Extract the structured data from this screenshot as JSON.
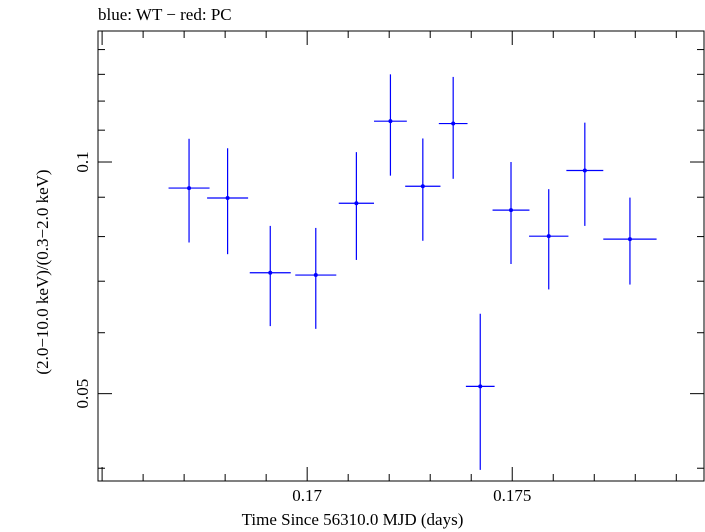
{
  "chart_data": {
    "type": "scatter",
    "title": "blue: WT − red: PC",
    "xlabel": "Time Since 56310.0 MJD (days)",
    "ylabel": "(2.0−10.0 keV)/(0.3−2.0 keV)",
    "xlim": [
      0.1649,
      0.1797
    ],
    "ylim": [
      0.0385,
      0.148
    ],
    "yscale": "log",
    "xticks": [
      {
        "value": 0.17,
        "label": "0.17"
      },
      {
        "value": 0.175,
        "label": "0.175"
      }
    ],
    "yticks": [
      {
        "value": 0.05,
        "label": "0.05"
      },
      {
        "value": 0.1,
        "label": "0.1"
      }
    ],
    "grid": false,
    "series": [
      {
        "color": "#0000ff",
        "points": [
          {
            "x": 0.16712,
            "y": 0.0925,
            "xerr": 0.0005,
            "ylo": 0.0786,
            "yhi": 0.1072
          },
          {
            "x": 0.16806,
            "y": 0.0898,
            "xerr": 0.0005,
            "ylo": 0.0759,
            "yhi": 0.1042
          },
          {
            "x": 0.1691,
            "y": 0.0718,
            "xerr": 0.0005,
            "ylo": 0.0612,
            "yhi": 0.0826
          },
          {
            "x": 0.17021,
            "y": 0.0713,
            "xerr": 0.0005,
            "ylo": 0.0607,
            "yhi": 0.0821
          },
          {
            "x": 0.1712,
            "y": 0.0884,
            "xerr": 0.00043,
            "ylo": 0.0746,
            "yhi": 0.103
          },
          {
            "x": 0.17203,
            "y": 0.113,
            "xerr": 0.0004,
            "ylo": 0.096,
            "yhi": 0.13
          },
          {
            "x": 0.17282,
            "y": 0.093,
            "xerr": 0.00043,
            "ylo": 0.079,
            "yhi": 0.1073
          },
          {
            "x": 0.17356,
            "y": 0.1122,
            "xerr": 0.00035,
            "ylo": 0.0951,
            "yhi": 0.129
          },
          {
            "x": 0.17422,
            "y": 0.0511,
            "xerr": 0.00035,
            "ylo": 0.0398,
            "yhi": 0.0635
          },
          {
            "x": 0.17497,
            "y": 0.0866,
            "xerr": 0.00045,
            "ylo": 0.0737,
            "yhi": 0.1
          },
          {
            "x": 0.17589,
            "y": 0.0801,
            "xerr": 0.00048,
            "ylo": 0.0683,
            "yhi": 0.0922
          },
          {
            "x": 0.17677,
            "y": 0.0975,
            "xerr": 0.00045,
            "ylo": 0.0826,
            "yhi": 0.1125
          },
          {
            "x": 0.17787,
            "y": 0.0794,
            "xerr": 0.00065,
            "ylo": 0.0693,
            "yhi": 0.0899
          }
        ]
      }
    ]
  }
}
